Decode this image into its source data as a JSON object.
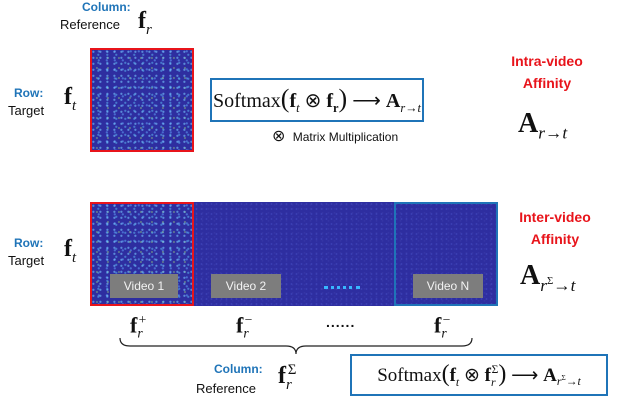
{
  "top": {
    "column_label": "Column:",
    "column_sub": "Reference",
    "row_label": "Row:",
    "row_sub": "Target",
    "formula_fn": "Softmax",
    "matrix_mult_symbol": "⊗",
    "matrix_mult_label": "Matrix Multiplication",
    "title_line1": "Intra-video",
    "title_line2": "Affinity"
  },
  "bottom": {
    "row_label": "Row:",
    "row_sub": "Target",
    "videos": [
      "Video 1",
      "Video 2",
      "Video N"
    ],
    "column_label": "Column:",
    "column_sub": "Reference",
    "formula_fn": "Softmax",
    "title_line1": "Inter-video",
    "title_line2": "Affinity",
    "ellipsis_dots": "......"
  },
  "colors": {
    "accent_blue": "#1f74b8",
    "red": "#e8141b",
    "matrix_blue": "#2e2ea0"
  }
}
